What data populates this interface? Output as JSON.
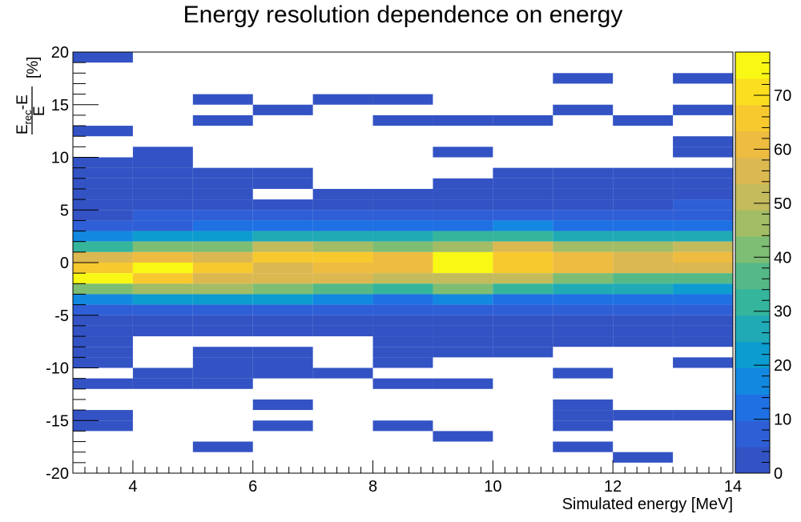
{
  "chart_data": {
    "type": "heatmap",
    "title": "Energy resolution dependence on energy",
    "xlabel": "Simulated energy [MeV]",
    "ylabel": {
      "numerator_main": "E",
      "numerator_sub": "rec",
      "numerator_rest": "-E",
      "denominator": "E",
      "unit": "[%]"
    },
    "xlim": [
      3,
      14
    ],
    "ylim": [
      -20,
      20
    ],
    "x_ticks": [
      "4",
      "6",
      "8",
      "10",
      "12",
      "14"
    ],
    "y_ticks": [
      "-20",
      "-15",
      "-10",
      "-5",
      "0",
      "5",
      "10",
      "15",
      "20"
    ],
    "x_bin_edges": [
      3,
      4,
      5,
      6,
      7,
      8,
      9,
      10,
      11,
      12,
      13,
      14
    ],
    "y_bin_width": 1,
    "zlim": [
      0,
      78
    ],
    "z_ticks": [
      "0",
      "10",
      "20",
      "30",
      "40",
      "50",
      "60",
      "70"
    ],
    "palette": [
      "#3353c4",
      "#2f5fd6",
      "#1f70e3",
      "#1388e0",
      "#0d9ccf",
      "#20aab6",
      "#34b59c",
      "#54b986",
      "#7ebd74",
      "#a2bd65",
      "#c3bb5c",
      "#dcb851",
      "#eebc40",
      "#f8c92e",
      "#fbde1f",
      "#f8f814"
    ],
    "rows": [
      {
        "y": 19,
        "values": [
          1,
          0,
          0,
          0,
          0,
          0,
          0,
          0,
          0,
          0,
          0
        ]
      },
      {
        "y": 17,
        "values": [
          0,
          0,
          0,
          0,
          0,
          0,
          0,
          0,
          1,
          0,
          1
        ]
      },
      {
        "y": 15,
        "values": [
          0,
          0,
          1,
          0,
          1,
          1,
          0,
          0,
          0,
          0,
          0
        ]
      },
      {
        "y": 14,
        "values": [
          0,
          0,
          0,
          1,
          0,
          0,
          0,
          0,
          1,
          0,
          1
        ]
      },
      {
        "y": 13,
        "values": [
          0,
          0,
          1,
          0,
          0,
          1,
          1,
          1,
          0,
          1,
          0
        ]
      },
      {
        "y": 12,
        "values": [
          1,
          0,
          0,
          0,
          0,
          0,
          0,
          0,
          0,
          0,
          0
        ]
      },
      {
        "y": 11,
        "values": [
          0,
          0,
          0,
          0,
          0,
          0,
          0,
          0,
          0,
          0,
          2
        ]
      },
      {
        "y": 10,
        "values": [
          0,
          1,
          0,
          0,
          0,
          0,
          1,
          0,
          0,
          0,
          2
        ]
      },
      {
        "y": 9,
        "values": [
          1,
          1,
          0,
          0,
          0,
          0,
          0,
          0,
          0,
          0,
          0
        ]
      },
      {
        "y": 8,
        "values": [
          1,
          1,
          1,
          1,
          0,
          0,
          0,
          2,
          2,
          2,
          2
        ]
      },
      {
        "y": 7,
        "values": [
          1,
          1,
          1,
          1,
          0,
          0,
          1,
          2,
          2,
          2,
          2
        ]
      },
      {
        "y": 6,
        "values": [
          2,
          2,
          2,
          0,
          2,
          2,
          3,
          3,
          3,
          3,
          2
        ]
      },
      {
        "y": 5,
        "values": [
          3,
          3,
          3,
          3,
          4,
          3,
          4,
          4,
          3,
          3,
          5
        ]
      },
      {
        "y": 4,
        "values": [
          4,
          6,
          8,
          6,
          5,
          7,
          6,
          7,
          6,
          5,
          6
        ]
      },
      {
        "y": 3,
        "values": [
          7,
          8,
          11,
          13,
          12,
          11,
          13,
          16,
          12,
          14,
          14
        ]
      },
      {
        "y": 2,
        "values": [
          17,
          20,
          22,
          25,
          29,
          26,
          30,
          30,
          26,
          26,
          27
        ]
      },
      {
        "y": 1,
        "values": [
          34,
          40,
          42,
          52,
          46,
          41,
          48,
          57,
          48,
          48,
          53
        ]
      },
      {
        "y": 0,
        "values": [
          58,
          61,
          57,
          64,
          64,
          62,
          76,
          67,
          60,
          58,
          63
        ]
      },
      {
        "y": -1,
        "values": [
          64,
          77,
          68,
          58,
          62,
          61,
          77,
          68,
          62,
          57,
          55
        ]
      },
      {
        "y": -2,
        "values": [
          78,
          65,
          57,
          54,
          58,
          50,
          51,
          51,
          43,
          35,
          36
        ]
      },
      {
        "y": -3,
        "values": [
          40,
          48,
          46,
          41,
          37,
          34,
          39,
          32,
          28,
          26,
          24
        ]
      },
      {
        "y": -4,
        "values": [
          17,
          24,
          21,
          20,
          18,
          13,
          16,
          11,
          11,
          12,
          10
        ]
      },
      {
        "y": -5,
        "values": [
          8,
          8,
          8,
          8,
          7,
          7,
          7,
          6,
          5,
          5,
          5
        ]
      },
      {
        "y": -6,
        "values": [
          3,
          3,
          3,
          3,
          3,
          3,
          3,
          3,
          3,
          3,
          3
        ]
      },
      {
        "y": -7,
        "values": [
          2,
          2,
          2,
          2,
          2,
          2,
          2,
          2,
          2,
          2,
          2
        ]
      },
      {
        "y": -8,
        "values": [
          1,
          0,
          0,
          0,
          0,
          1,
          1,
          1,
          1,
          1,
          1
        ]
      },
      {
        "y": -9,
        "values": [
          1,
          0,
          1,
          1,
          0,
          1,
          1,
          1,
          0,
          0,
          0
        ]
      },
      {
        "y": -10,
        "values": [
          1,
          0,
          1,
          1,
          0,
          1,
          0,
          0,
          0,
          0,
          1
        ]
      },
      {
        "y": -11,
        "values": [
          0,
          1,
          1,
          1,
          1,
          0,
          0,
          0,
          1,
          0,
          0
        ]
      },
      {
        "y": -12,
        "values": [
          1,
          1,
          1,
          0,
          0,
          1,
          1,
          0,
          0,
          0,
          0
        ]
      },
      {
        "y": -13,
        "values": [
          0,
          0,
          0,
          0,
          0,
          0,
          0,
          0,
          0,
          0,
          0
        ]
      },
      {
        "y": -14,
        "values": [
          0,
          0,
          0,
          1,
          0,
          0,
          0,
          0,
          1,
          0,
          0
        ]
      },
      {
        "y": -15,
        "values": [
          1,
          0,
          0,
          0,
          0,
          0,
          0,
          0,
          1,
          1,
          1
        ]
      },
      {
        "y": -16,
        "values": [
          1,
          0,
          0,
          1,
          0,
          1,
          0,
          0,
          1,
          0,
          0
        ]
      },
      {
        "y": -17,
        "values": [
          0,
          0,
          0,
          0,
          0,
          0,
          1,
          0,
          0,
          0,
          0
        ]
      },
      {
        "y": -18,
        "values": [
          0,
          0,
          1,
          0,
          0,
          0,
          0,
          0,
          1,
          0,
          0
        ]
      },
      {
        "y": -19,
        "values": [
          0,
          0,
          0,
          0,
          0,
          0,
          0,
          0,
          0,
          1,
          0
        ]
      },
      {
        "y": -20,
        "values": [
          0,
          0,
          0,
          0,
          0,
          0,
          0,
          0,
          0,
          0,
          0
        ]
      }
    ]
  }
}
